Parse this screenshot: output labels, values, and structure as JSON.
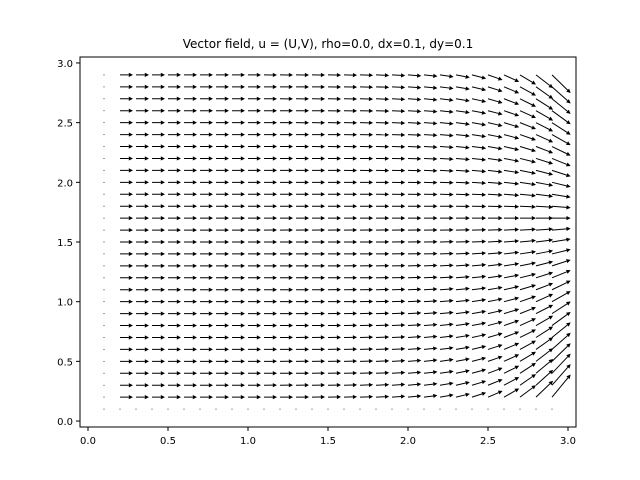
{
  "chart_data": {
    "type": "quiver",
    "title": "Vector field, u = (U,V), rho=0.0, dx=0.1, dy=0.1",
    "xlabel": "",
    "ylabel": "",
    "xlim": [
      -0.05,
      3.05
    ],
    "ylim": [
      -0.05,
      3.05
    ],
    "x_ticks": [
      0.0,
      0.5,
      1.0,
      1.5,
      2.0,
      2.5,
      3.0
    ],
    "x_tick_labels": [
      "0.0",
      "0.5",
      "1.0",
      "1.5",
      "2.0",
      "2.5",
      "3.0"
    ],
    "y_ticks": [
      0.0,
      0.5,
      1.0,
      1.5,
      2.0,
      2.5,
      3.0
    ],
    "y_tick_labels": [
      "0.0",
      "0.5",
      "1.0",
      "1.5",
      "2.0",
      "2.5",
      "3.0"
    ],
    "grid": false,
    "arrow_color": "#000000",
    "grid_x": {
      "start": 0.1,
      "stop": 2.9,
      "step": 0.1
    },
    "grid_y": {
      "start": 0.1,
      "stop": 2.9,
      "step": 0.1
    },
    "field_description": "Arrows point mostly in +x direction; near x=3 they converge toward y≈1.7 (flow pointing toward the right boundary center). Left column (x=0.1) and bottom row (y=0.1) have near-zero vectors."
  }
}
